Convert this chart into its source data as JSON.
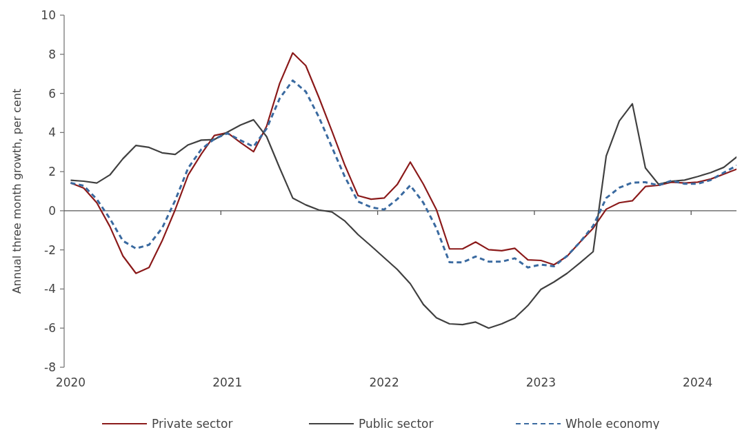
{
  "chart_data": {
    "type": "line",
    "ylabel": "Annual three month growth, per cent",
    "categories": [
      "2020",
      null,
      null,
      null,
      null,
      null,
      null,
      null,
      null,
      null,
      null,
      null,
      "2021",
      null,
      null,
      null,
      null,
      null,
      null,
      null,
      null,
      null,
      null,
      null,
      "2022",
      null,
      null,
      null,
      null,
      null,
      null,
      null,
      null,
      null,
      null,
      null,
      "2023",
      null,
      null,
      null,
      null,
      null,
      null,
      null,
      null,
      null,
      null,
      null,
      "2024",
      null,
      null,
      null
    ],
    "ylim": [
      -8,
      10
    ],
    "yticks": [
      -8,
      -6,
      -4,
      -2,
      0,
      2,
      4,
      6,
      8,
      10
    ],
    "legend": "bottom",
    "series": [
      {
        "name": "Private sector",
        "color": "#8b1a1a",
        "line_style": "solid",
        "values": [
          1.42,
          1.16,
          0.41,
          -0.8,
          -2.31,
          -3.2,
          -2.9,
          -1.54,
          0.05,
          1.83,
          2.9,
          3.85,
          3.99,
          3.49,
          3.02,
          4.32,
          6.51,
          8.07,
          7.42,
          5.8,
          4.08,
          2.31,
          0.77,
          0.59,
          0.65,
          1.34,
          2.49,
          1.36,
          0.06,
          -1.95,
          -1.95,
          -1.6,
          -1.99,
          -2.04,
          -1.92,
          -2.51,
          -2.54,
          -2.76,
          -2.33,
          -1.6,
          -0.89,
          0.08,
          0.41,
          0.51,
          1.24,
          1.3,
          1.46,
          1.42,
          1.46,
          1.62,
          1.87,
          2.13
        ]
      },
      {
        "name": "Public sector",
        "color": "#404040",
        "line_style": "solid",
        "values": [
          1.56,
          1.51,
          1.42,
          1.83,
          2.66,
          3.34,
          3.24,
          2.96,
          2.88,
          3.37,
          3.61,
          3.64,
          4.02,
          4.38,
          4.65,
          3.79,
          2.19,
          0.65,
          0.3,
          0.04,
          -0.06,
          -0.53,
          -1.22,
          -1.8,
          -2.4,
          -3.0,
          -3.73,
          -4.79,
          -5.47,
          -5.78,
          -5.82,
          -5.69,
          -6.0,
          -5.78,
          -5.48,
          -4.85,
          -4.02,
          -3.64,
          -3.2,
          -2.66,
          -2.09,
          2.8,
          4.59,
          5.47,
          2.19,
          1.36,
          1.51,
          1.57,
          1.75,
          1.95,
          2.22,
          2.76
        ]
      },
      {
        "name": "Whole economy",
        "color": "#3a6aa0",
        "line_style": "dashed",
        "values": [
          1.42,
          1.28,
          0.59,
          -0.4,
          -1.54,
          -1.93,
          -1.74,
          -0.89,
          0.53,
          2.19,
          3.14,
          3.67,
          3.96,
          3.6,
          3.28,
          4.2,
          5.74,
          6.66,
          6.09,
          4.79,
          3.25,
          1.72,
          0.47,
          0.18,
          0.06,
          0.59,
          1.3,
          0.41,
          -0.89,
          -2.63,
          -2.64,
          -2.34,
          -2.6,
          -2.6,
          -2.43,
          -2.9,
          -2.75,
          -2.84,
          -2.31,
          -1.6,
          -0.77,
          0.65,
          1.18,
          1.44,
          1.46,
          1.3,
          1.54,
          1.38,
          1.38,
          1.57,
          1.95,
          2.31
        ]
      }
    ]
  }
}
